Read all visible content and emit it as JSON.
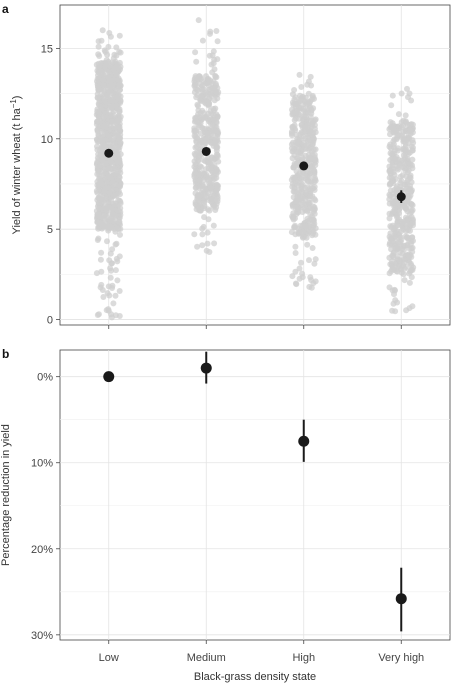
{
  "chart_data": [
    {
      "panel_label": "a",
      "type": "scatter",
      "categories": [
        "Low",
        "Medium",
        "High",
        "Very high"
      ],
      "ylabel": "Yield of winter wheat (t ha",
      "ylabel_superscript": "−1",
      "ylabel_close": ")",
      "ylim": [
        -0.3,
        17.4
      ],
      "yticks": [
        0,
        5,
        10,
        15
      ],
      "ytick_labels": [
        "0",
        "5",
        "10",
        "15"
      ],
      "grid": true,
      "raw_points": {
        "color": "#cfcfcf",
        "ranges": [
          {
            "category": "Low",
            "min": 0.0,
            "max": 16.3,
            "core_low": 5.0,
            "core_high": 14.3
          },
          {
            "category": "Medium",
            "min": 3.4,
            "max": 16.6,
            "core_low": 6.0,
            "core_high": 13.5
          },
          {
            "category": "High",
            "min": 1.7,
            "max": 13.7,
            "core_low": 4.5,
            "core_high": 12.5
          },
          {
            "category": "Very high",
            "min": 0.3,
            "max": 12.9,
            "core_low": 2.5,
            "core_high": 11.0
          }
        ]
      },
      "means": [
        9.2,
        9.3,
        8.5,
        6.8
      ],
      "ci_low": [
        9.05,
        9.15,
        8.35,
        6.45
      ],
      "ci_high": [
        9.35,
        9.45,
        8.65,
        7.15
      ],
      "mean_color": "#1a1a1a"
    },
    {
      "panel_label": "b",
      "type": "scatter",
      "categories": [
        "Low",
        "Medium",
        "High",
        "Very high"
      ],
      "xlabel": "Black-grass density state",
      "ylabel": "Percentage reduction in yield",
      "ylim": [
        -3.1,
        30.6
      ],
      "y_reversed": true,
      "yticks": [
        0,
        10,
        20,
        30
      ],
      "ytick_labels": [
        "0%",
        "10%",
        "20%",
        "30%"
      ],
      "grid": true,
      "values": [
        0,
        -1.0,
        7.5,
        25.8
      ],
      "ci_low": [
        0,
        -2.9,
        5.0,
        22.2
      ],
      "ci_high": [
        0,
        0.8,
        9.9,
        29.6
      ],
      "point_color": "#1a1a1a"
    }
  ]
}
